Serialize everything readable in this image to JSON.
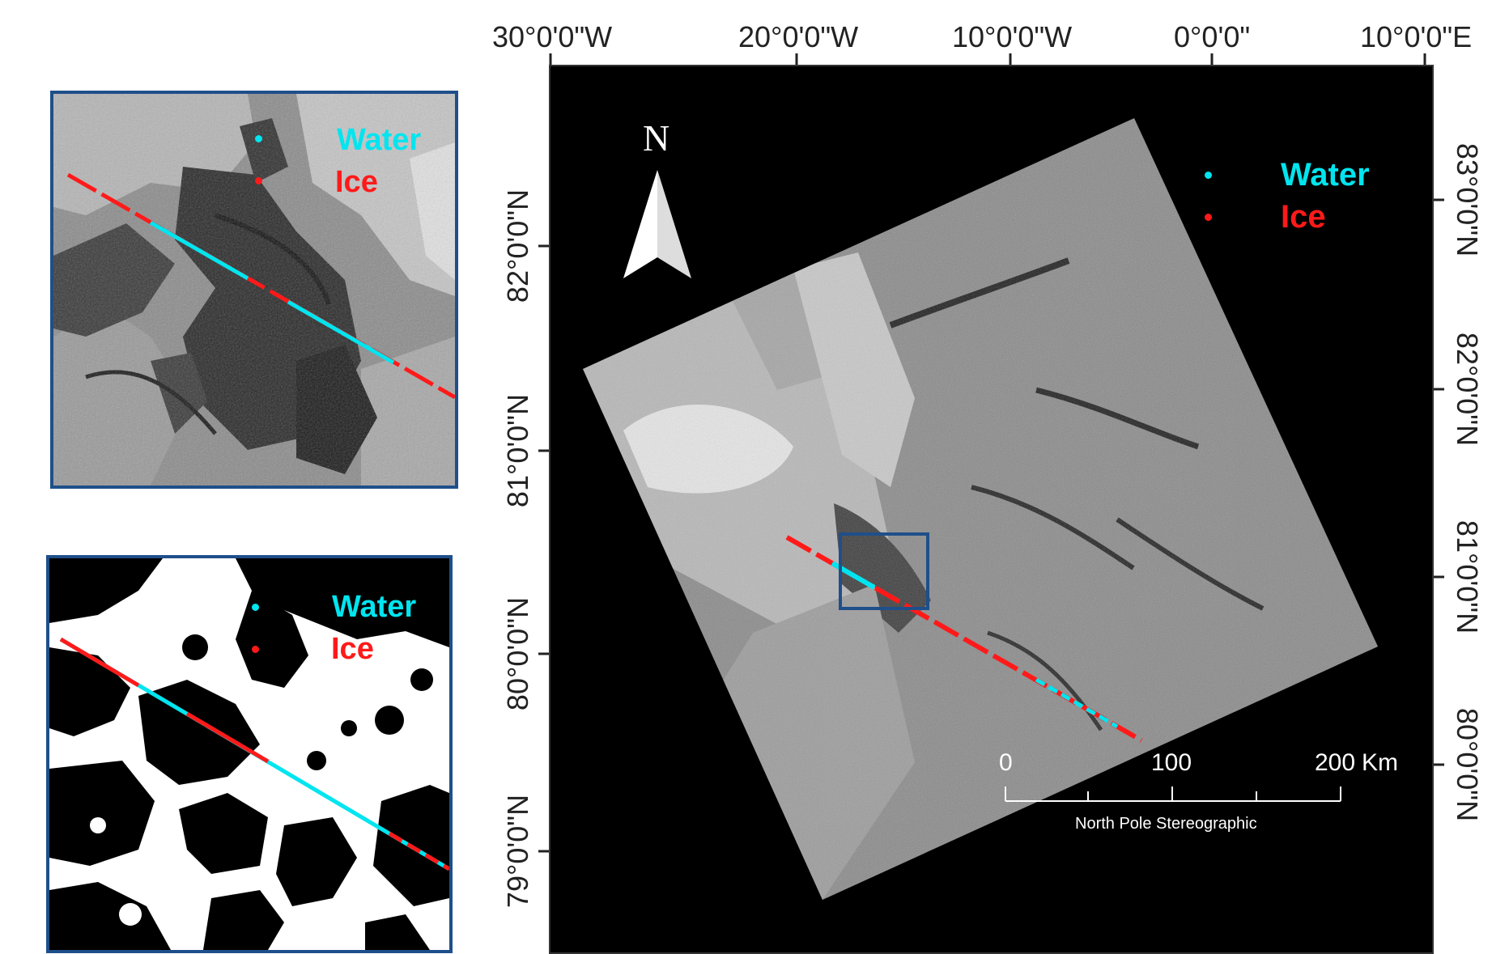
{
  "legend": {
    "water_label": "Water",
    "ice_label": "Ice",
    "water_color": "#00e5ef",
    "ice_color": "#ff1a1a"
  },
  "north_arrow": {
    "label": "N"
  },
  "top_axis": {
    "labels": [
      "30°0'0\"W",
      "20°0'0\"W",
      "10°0'0\"W",
      "0°0'0\"",
      "10°0'0\"E"
    ]
  },
  "left_axis": {
    "labels": [
      "82°0'0\"N",
      "81°0'0\"N",
      "80°0'0\"N",
      "79°0'0\"N"
    ]
  },
  "right_axis": {
    "labels": [
      "83°0'0\"N",
      "82°0'0\"N",
      "81°0'0\"N",
      "80°0'0\"N"
    ]
  },
  "scale_bar": {
    "labels": [
      "0",
      "100",
      "200"
    ],
    "unit": "Km",
    "projection": "North Pole Stereographic"
  },
  "colors": {
    "panel_border": "#1f4f8a",
    "map_background": "#000000"
  }
}
